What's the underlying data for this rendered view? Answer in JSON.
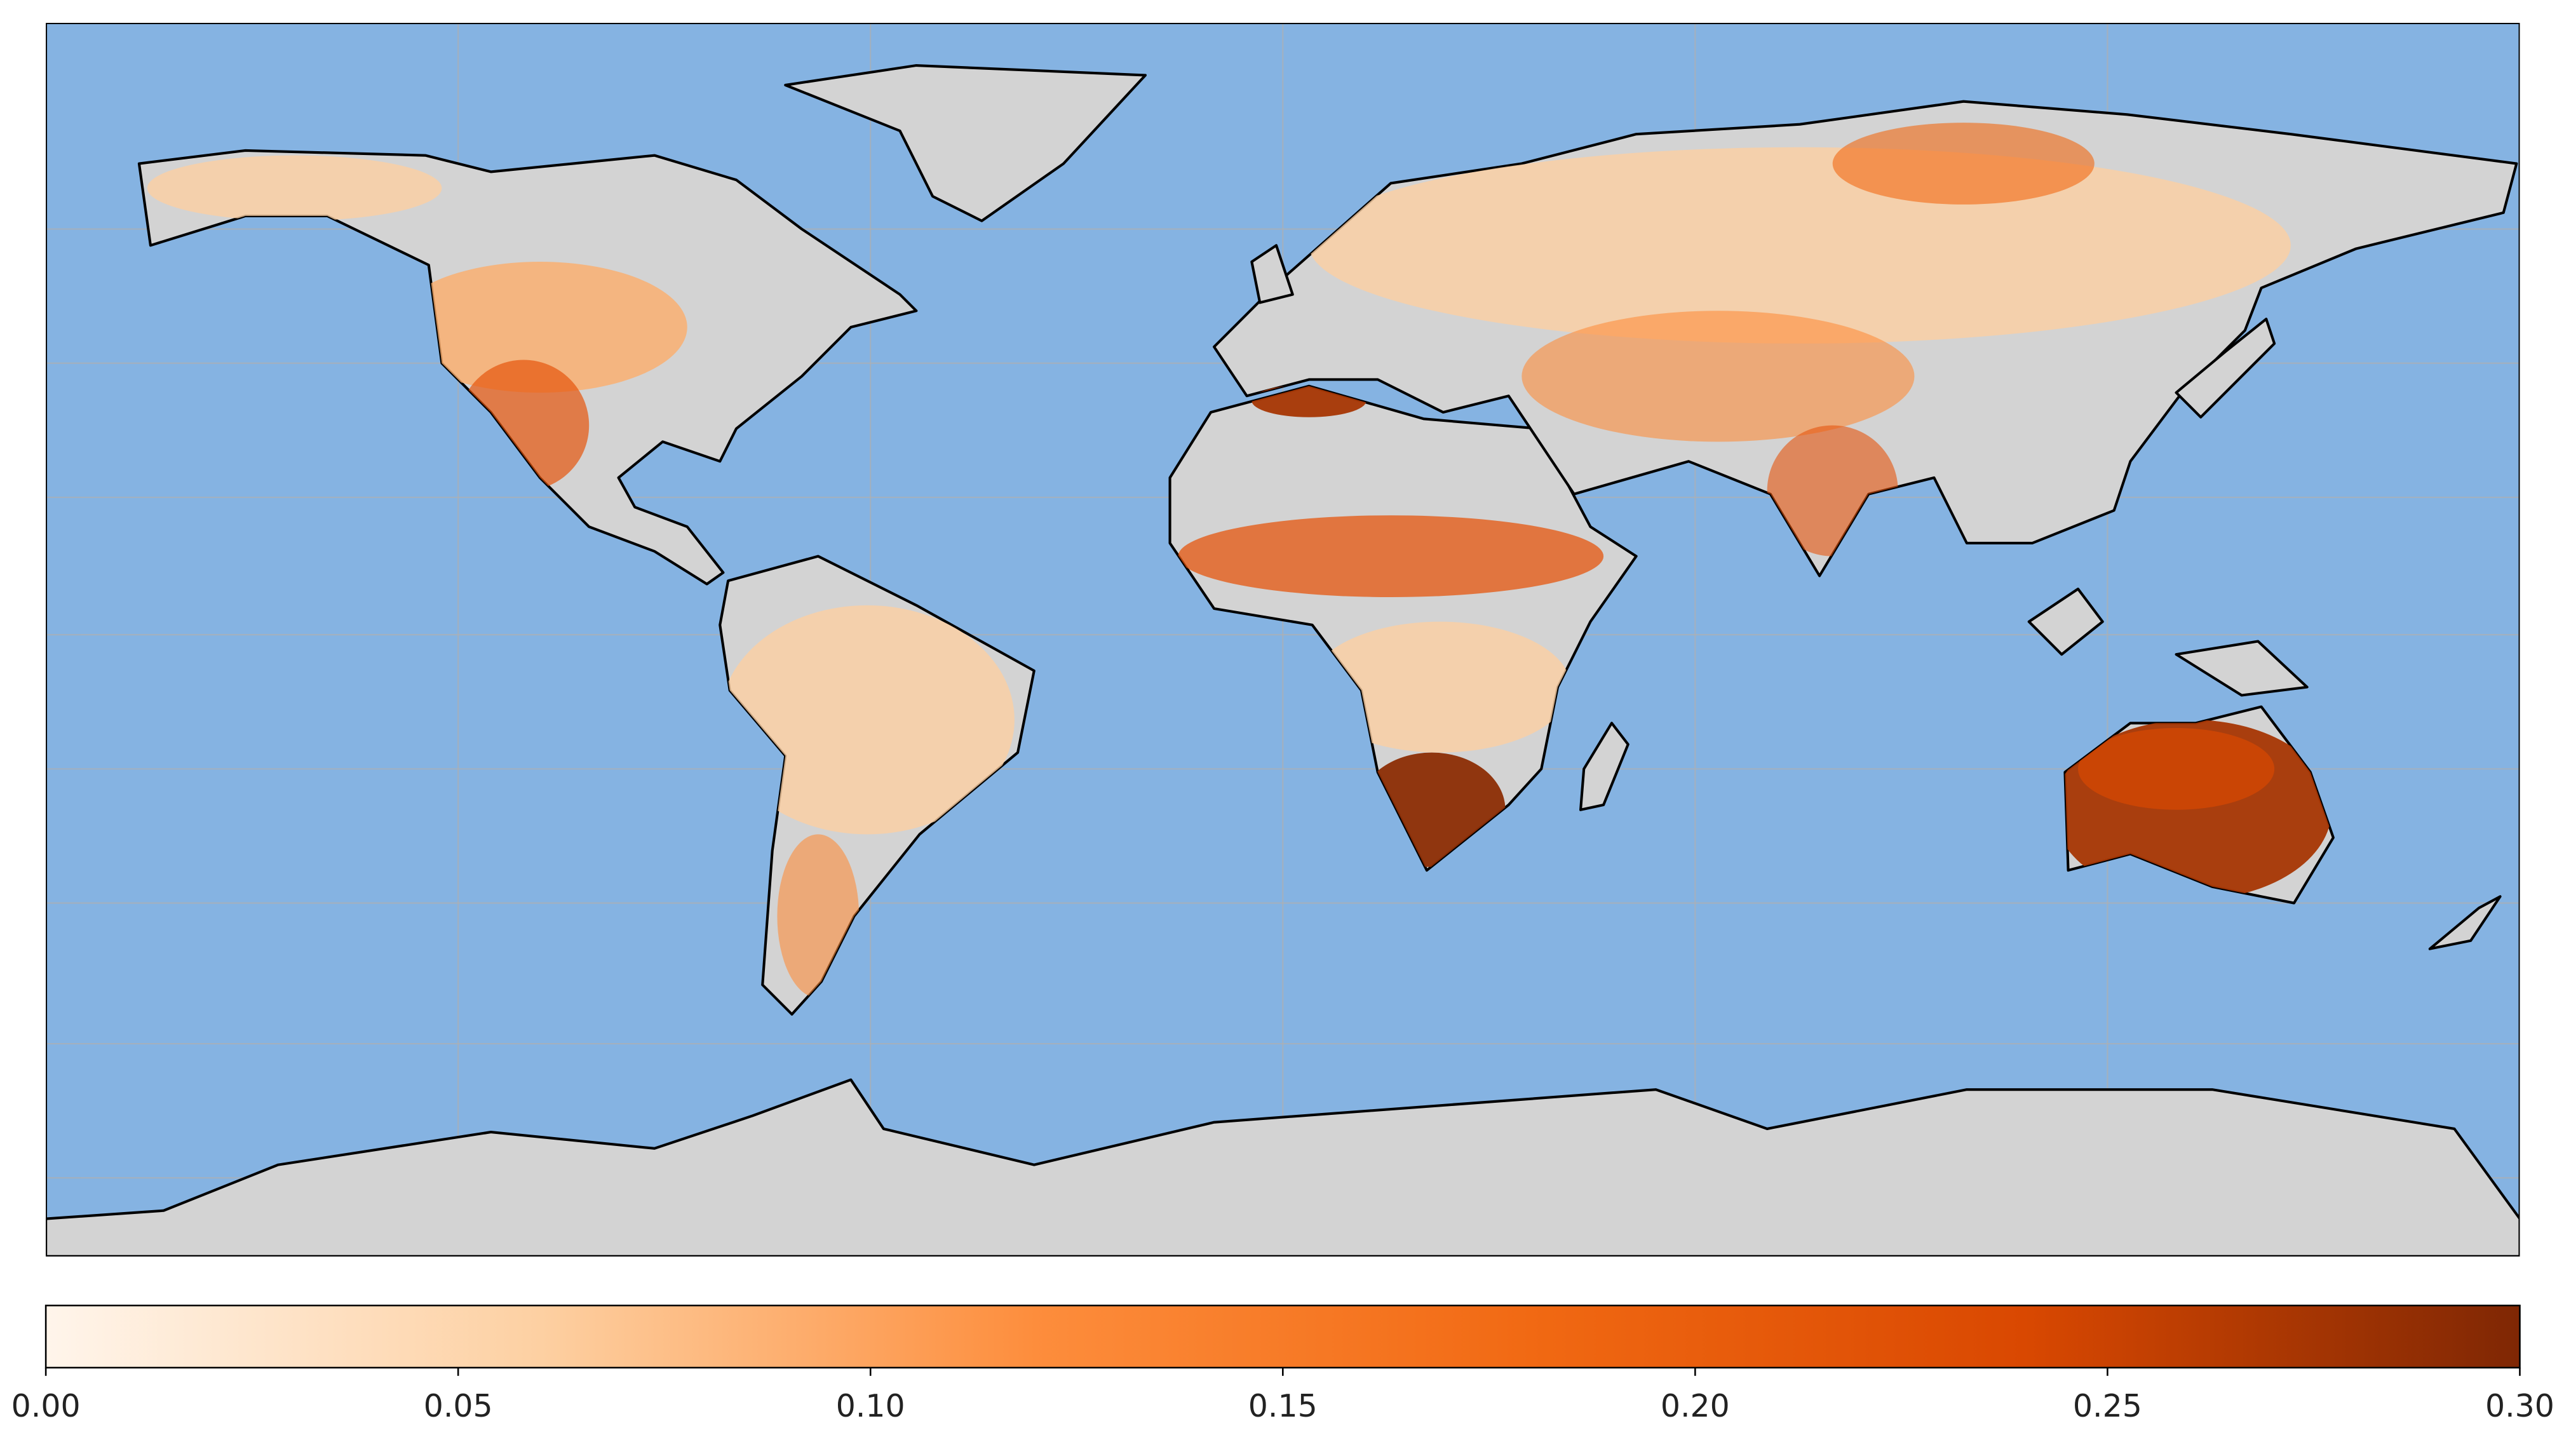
{
  "chart_data": {
    "type": "map",
    "colorbar": {
      "xlim": [
        0,
        0.3
      ],
      "xticks": [
        {
          "value": 0,
          "label": "0.00"
        },
        {
          "value": 0.05,
          "label": "0.05"
        },
        {
          "value": 0.1,
          "label": "0.10"
        },
        {
          "value": 0.15,
          "label": "0.15"
        },
        {
          "value": 0.2,
          "label": "0.20"
        },
        {
          "value": 0.25,
          "label": "0.25"
        },
        {
          "value": 0.3,
          "label": "0.30"
        }
      ],
      "colors": [
        "#fff5eb",
        "#fdd0a2",
        "#fd8d3c",
        "#f16913",
        "#d94801",
        "#7f2704"
      ]
    }
  }
}
